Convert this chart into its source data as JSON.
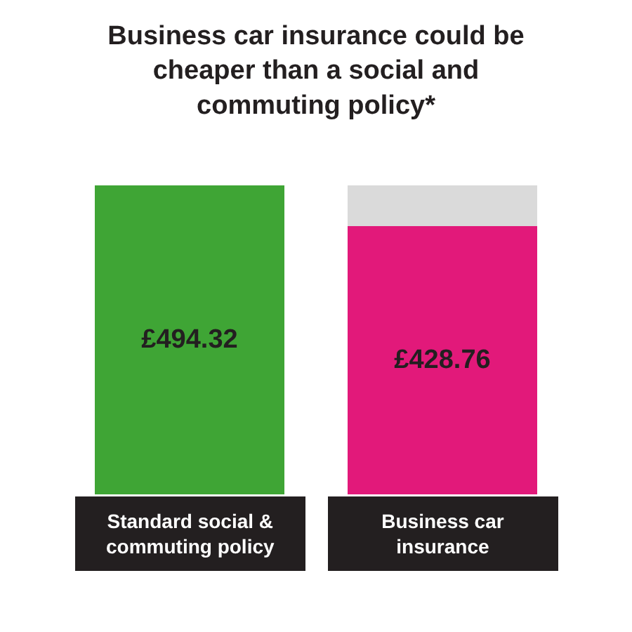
{
  "chart_data": {
    "type": "bar",
    "title": "Business car insurance could be cheaper than a social and commuting policy*",
    "categories": [
      "Standard social & commuting policy",
      "Business car insurance"
    ],
    "stacked": true,
    "series": [
      {
        "colors": [
          "#3fa535",
          "#e2197a"
        ],
        "values": [
          494.32,
          428.76
        ],
        "value_labels": [
          "£494.32",
          "£428.76"
        ]
      },
      {
        "color": "#dadada",
        "values": [
          null,
          65.56
        ]
      }
    ]
  }
}
